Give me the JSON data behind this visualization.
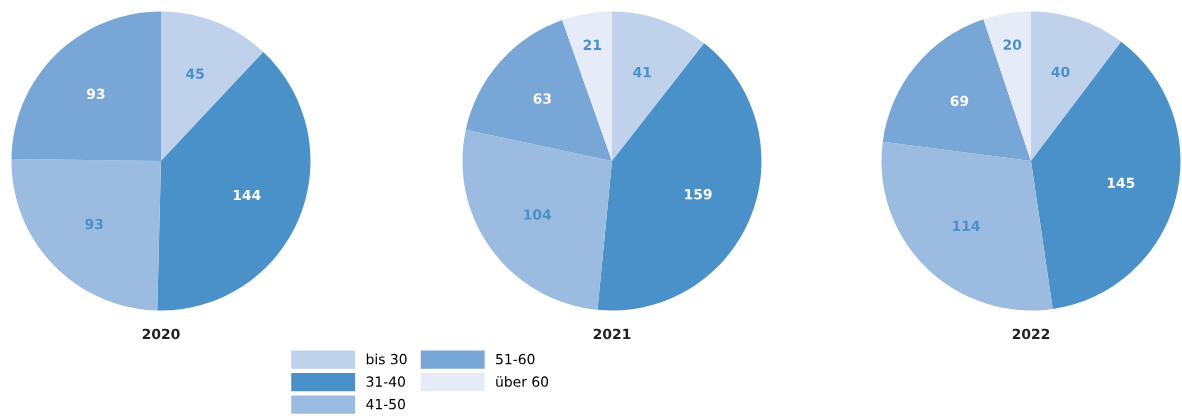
{
  "chart_data": [
    {
      "type": "pie",
      "title": "2020",
      "categories": [
        "bis 30",
        "31-40",
        "41-50",
        "51-60",
        "über 60"
      ],
      "values": [
        45,
        144,
        93,
        93,
        0
      ],
      "value_labels": [
        "45",
        "144",
        "93",
        "93",
        null
      ],
      "colors": [
        "#c0d1ec",
        "#4a90c9",
        "#9bbce0",
        "#78a6d6",
        "#e6ecf7"
      ],
      "legend": "bottom"
    },
    {
      "type": "pie",
      "title": "2021",
      "categories": [
        null,
        null,
        null,
        null,
        null
      ],
      "values": [
        41,
        159,
        104,
        63,
        21
      ],
      "colors": [
        "#c0d1ec",
        "#4a90c9",
        "#9bbce0",
        "#78a6d6",
        "#e6ecf7"
      ],
      "data_labels": true,
      "legend": false
    },
    {
      "type": "pie",
      "title": "2022",
      "categories": [
        null,
        null,
        null,
        null,
        null
      ],
      "values": [
        40,
        145,
        114,
        69,
        20
      ],
      "colors": [
        "#c0d1ec",
        "#4a90c9",
        "#9bbce0",
        "#78a6d6",
        "#e6ecf7"
      ],
      "data_labels": true,
      "legend": false
    }
  ]
}
